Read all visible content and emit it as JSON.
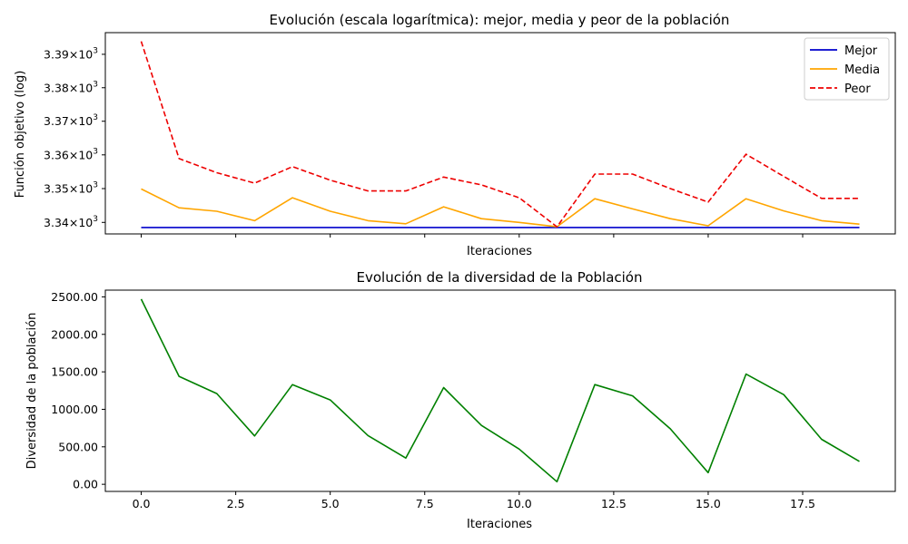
{
  "chart_data": [
    {
      "type": "line",
      "title": "Evolución (escala logarítmica): mejor, media y peor de la población",
      "xlabel": "Iteraciones",
      "ylabel": "Función objetivo (log)",
      "yscale": "log",
      "xlim": [
        -0.95,
        19.95
      ],
      "ylim": [
        3336.6,
        3396.5
      ],
      "x_ticks": [
        0,
        2.5,
        5,
        7.5,
        10,
        12.5,
        15,
        17.5
      ],
      "x_ticklabels_visible": false,
      "y_ticks": [
        3340,
        3350,
        3360,
        3370,
        3380,
        3390
      ],
      "y_tick_mantissas": [
        "3.34",
        "3.35",
        "3.36",
        "3.37",
        "3.38",
        "3.39"
      ],
      "y_tick_times": "×",
      "y_tick_base": "10",
      "y_tick_exp": "3",
      "legend_position": "top-right",
      "grid": false,
      "x": [
        0,
        1,
        2,
        3,
        4,
        5,
        6,
        7,
        8,
        9,
        10,
        11,
        12,
        13,
        14,
        15,
        16,
        17,
        18,
        19
      ],
      "series": [
        {
          "name": "Mejor",
          "color": "#0000cc",
          "dash": "solid",
          "values": [
            3338.5,
            3338.5,
            3338.5,
            3338.5,
            3338.5,
            3338.5,
            3338.5,
            3338.5,
            3338.5,
            3338.5,
            3338.5,
            3338.5,
            3338.5,
            3338.5,
            3338.5,
            3338.5,
            3338.5,
            3338.5,
            3338.5,
            3338.5
          ]
        },
        {
          "name": "Media",
          "color": "#ffa500",
          "dash": "solid",
          "values": [
            3349.9,
            3344.3,
            3343.3,
            3340.5,
            3347.3,
            3343.3,
            3340.5,
            3339.6,
            3344.6,
            3341.1,
            3340.0,
            3338.7,
            3347.0,
            3344.0,
            3341.1,
            3339.0,
            3347.0,
            3343.4,
            3340.5,
            3339.5
          ]
        },
        {
          "name": "Peor",
          "color": "#ee0000",
          "dash": "dashed",
          "values": [
            3393.9,
            3358.9,
            3354.7,
            3351.6,
            3356.5,
            3352.5,
            3349.3,
            3349.3,
            3353.4,
            3351.1,
            3347.3,
            3338.7,
            3354.3,
            3354.3,
            3350.0,
            3346.0,
            3360.2,
            3353.6,
            3347.1,
            3347.1
          ]
        }
      ]
    },
    {
      "type": "line",
      "title": "Evolución de la diversidad de la Población",
      "xlabel": "Iteraciones",
      "ylabel": "Diversidad de la población",
      "yscale": "linear",
      "xlim": [
        -0.95,
        19.95
      ],
      "ylim": [
        -95,
        2590
      ],
      "x_ticks": [
        0,
        2.5,
        5,
        7.5,
        10,
        12.5,
        15,
        17.5
      ],
      "x_ticklabels": [
        "0.0",
        "2.5",
        "5.0",
        "7.5",
        "10.0",
        "12.5",
        "15.0",
        "17.5"
      ],
      "y_ticks": [
        0,
        500,
        1000,
        1500,
        2000,
        2500
      ],
      "y_ticklabels": [
        "0.00",
        "500.00",
        "1000.00",
        "1500.00",
        "2000.00",
        "2500.00"
      ],
      "grid": false,
      "x": [
        0,
        1,
        2,
        3,
        4,
        5,
        6,
        7,
        8,
        9,
        10,
        11,
        12,
        13,
        14,
        15,
        16,
        17,
        18,
        19
      ],
      "series": [
        {
          "color": "#008000",
          "dash": "solid",
          "values": [
            2470,
            1440,
            1210,
            645,
            1330,
            1125,
            650,
            350,
            1290,
            785,
            470,
            35,
            1330,
            1180,
            740,
            155,
            1470,
            1195,
            600,
            305
          ]
        }
      ]
    }
  ]
}
